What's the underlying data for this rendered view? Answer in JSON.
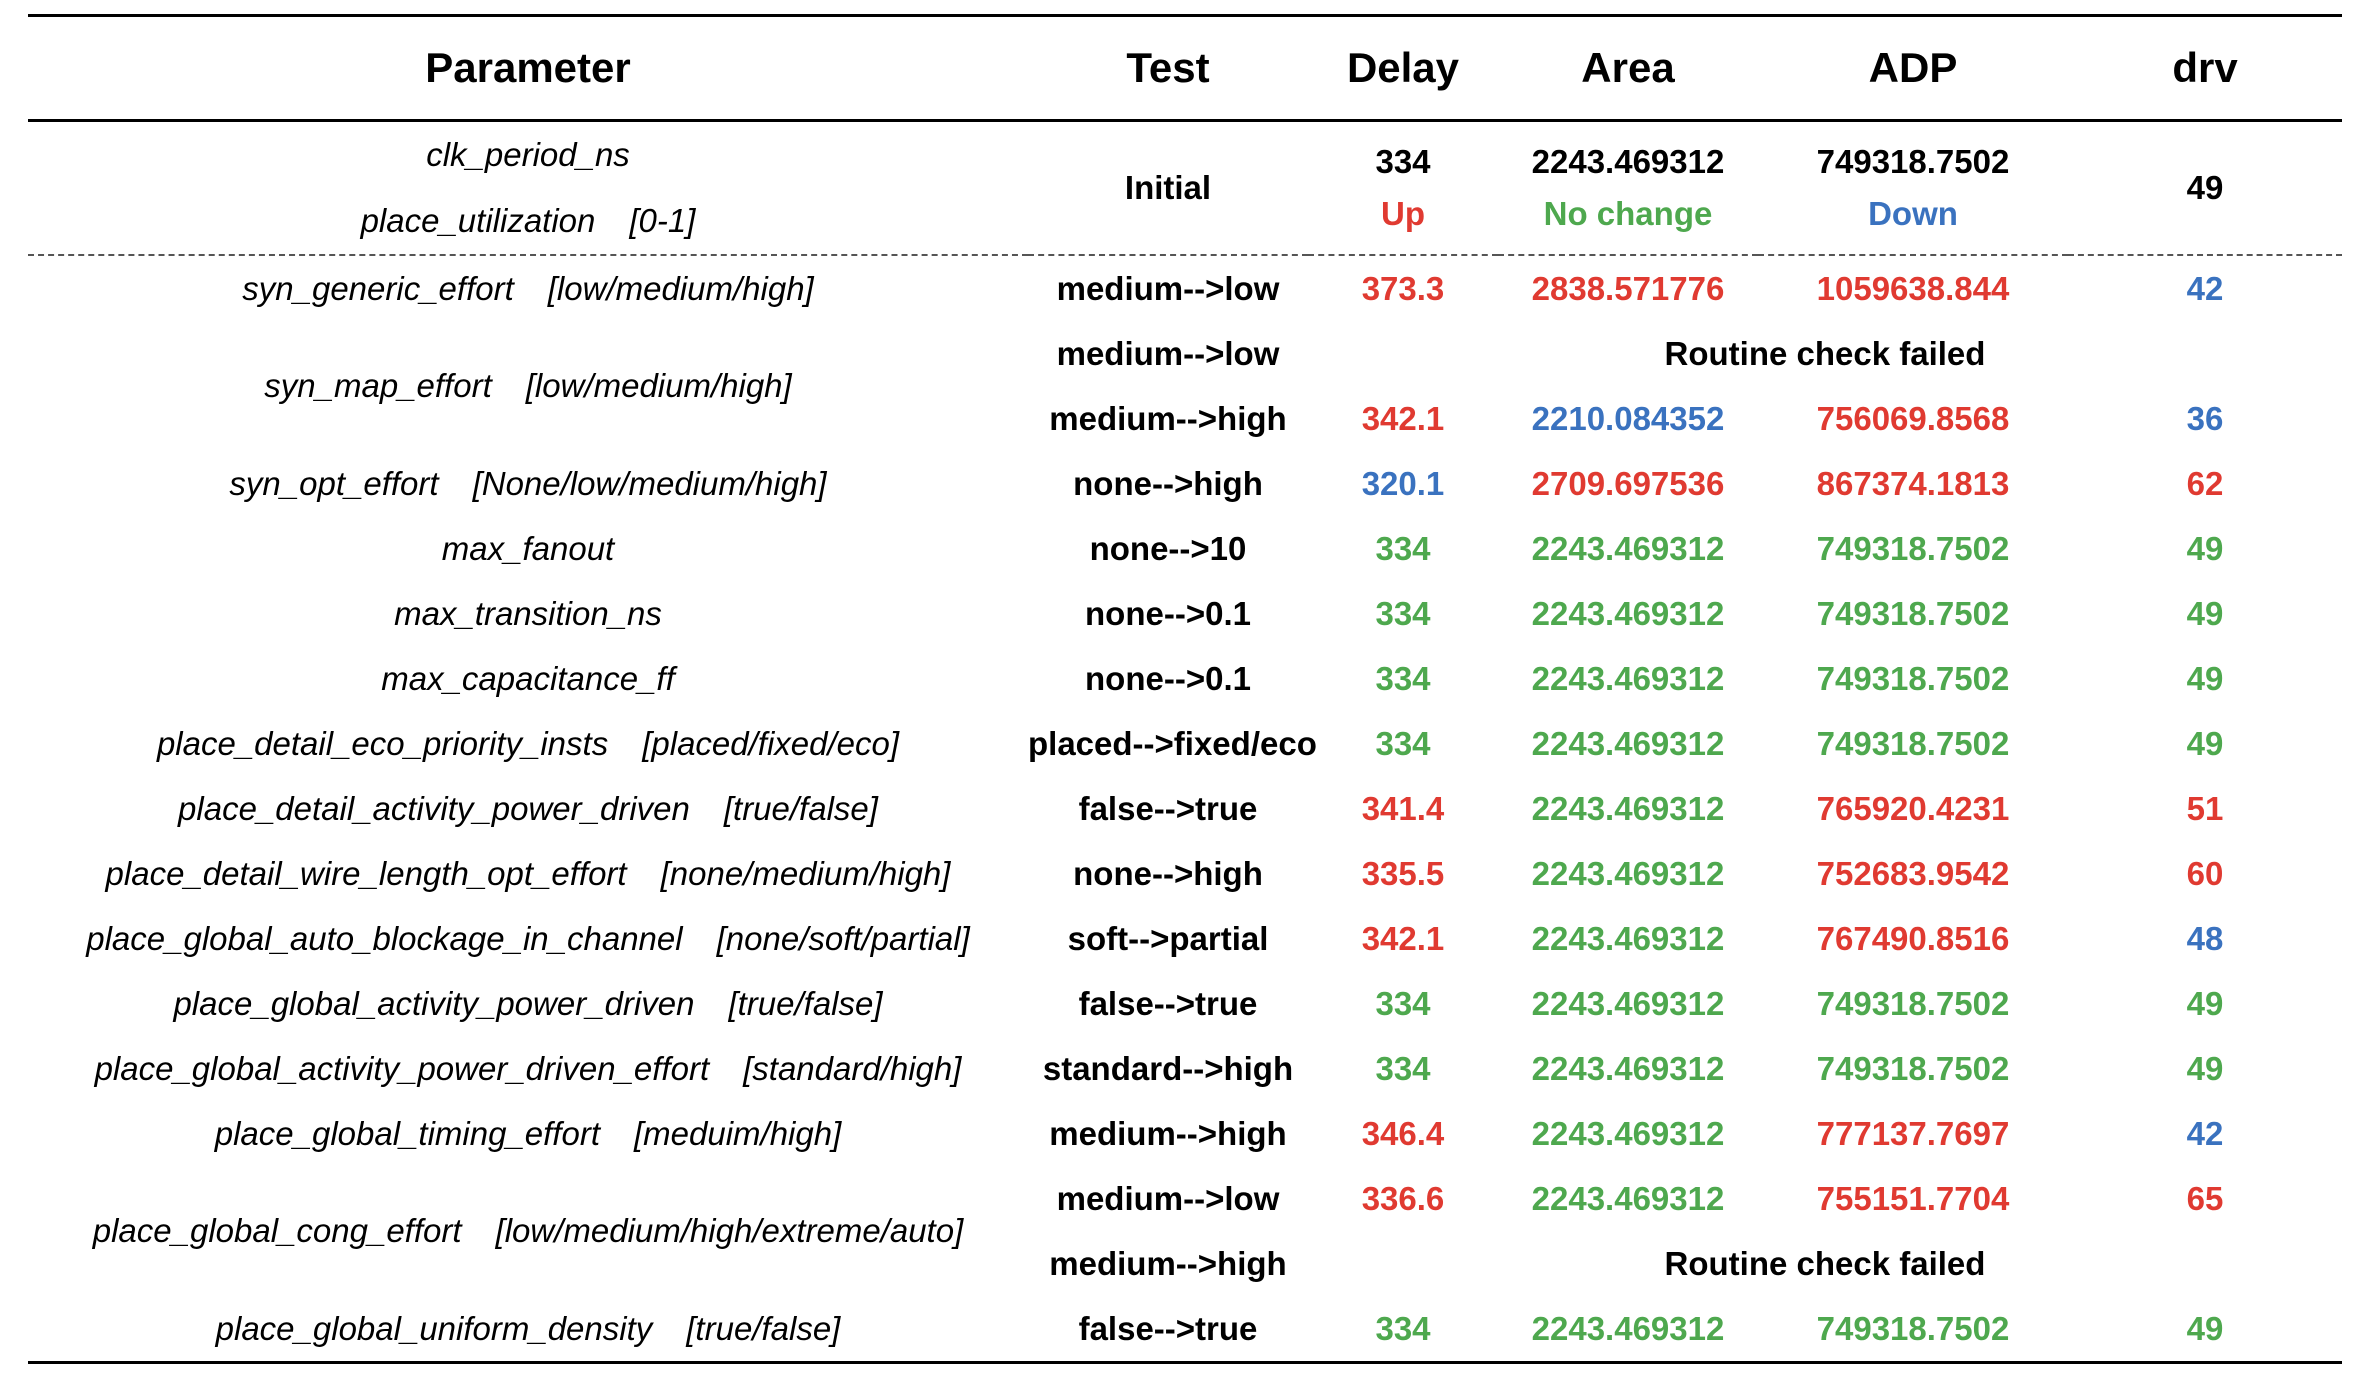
{
  "table": {
    "headers": {
      "parameter": "Parameter",
      "test": "Test",
      "delay": "Delay",
      "area": "Area",
      "adp": "ADP",
      "drv": "drv"
    },
    "initial": {
      "params": [
        {
          "name": "clk_period_ns",
          "options": ""
        },
        {
          "name": "place_utilization",
          "options": "[0-1]"
        }
      ],
      "test": "Initial",
      "delay": "334",
      "area": "2243.469312",
      "adp": "749318.7502",
      "drv": "49",
      "legend": {
        "up": "Up",
        "no_change": "No change",
        "down": "Down",
        "up_color": "#e03a31",
        "no_change_color": "#4ea84e",
        "down_color": "#3a72bf"
      }
    },
    "rows": [
      {
        "param": "syn_generic_effort",
        "options": "[low/medium/high]",
        "tests": [
          {
            "test": "medium-->low",
            "delay": "373.3",
            "delay_c": "up",
            "area": "2838.571776",
            "area_c": "up",
            "adp": "1059638.844",
            "adp_c": "up",
            "drv": "42",
            "drv_c": "down"
          }
        ]
      },
      {
        "param": "syn_map_effort",
        "options": "[low/medium/high]",
        "tests": [
          {
            "test": "medium-->low",
            "failed": "Routine check failed"
          },
          {
            "test": "medium-->high",
            "delay": "342.1",
            "delay_c": "up",
            "area": "2210.084352",
            "area_c": "down",
            "adp": "756069.8568",
            "adp_c": "up",
            "drv": "36",
            "drv_c": "down"
          }
        ]
      },
      {
        "param": "syn_opt_effort",
        "options": "[None/low/medium/high]",
        "tests": [
          {
            "test": "none-->high",
            "delay": "320.1",
            "delay_c": "down",
            "area": "2709.697536",
            "area_c": "up",
            "adp": "867374.1813",
            "adp_c": "up",
            "drv": "62",
            "drv_c": "up"
          }
        ]
      },
      {
        "param": "max_fanout",
        "options": "",
        "tests": [
          {
            "test": "none-->10",
            "delay": "334",
            "delay_c": "same",
            "area": "2243.469312",
            "area_c": "same",
            "adp": "749318.7502",
            "adp_c": "same",
            "drv": "49",
            "drv_c": "same"
          }
        ]
      },
      {
        "param": "max_transition_ns",
        "options": "",
        "tests": [
          {
            "test": "none-->0.1",
            "delay": "334",
            "delay_c": "same",
            "area": "2243.469312",
            "area_c": "same",
            "adp": "749318.7502",
            "adp_c": "same",
            "drv": "49",
            "drv_c": "same"
          }
        ]
      },
      {
        "param": "max_capacitance_ff",
        "options": "",
        "tests": [
          {
            "test": "none-->0.1",
            "delay": "334",
            "delay_c": "same",
            "area": "2243.469312",
            "area_c": "same",
            "adp": "749318.7502",
            "adp_c": "same",
            "drv": "49",
            "drv_c": "same"
          }
        ]
      },
      {
        "param": "place_detail_eco_priority_insts",
        "options": "[placed/fixed/eco]",
        "tests": [
          {
            "test": "placed-->fixed/eco",
            "delay": "334",
            "delay_c": "same",
            "area": "2243.469312",
            "area_c": "same",
            "adp": "749318.7502",
            "adp_c": "same",
            "drv": "49",
            "drv_c": "same"
          }
        ]
      },
      {
        "param": "place_detail_activity_power_driven",
        "options": "[true/false]",
        "tests": [
          {
            "test": "false-->true",
            "delay": "341.4",
            "delay_c": "up",
            "area": "2243.469312",
            "area_c": "same",
            "adp": "765920.4231",
            "adp_c": "up",
            "drv": "51",
            "drv_c": "up"
          }
        ]
      },
      {
        "param": "place_detail_wire_length_opt_effort",
        "options": "[none/medium/high]",
        "tests": [
          {
            "test": "none-->high",
            "delay": "335.5",
            "delay_c": "up",
            "area": "2243.469312",
            "area_c": "same",
            "adp": "752683.9542",
            "adp_c": "up",
            "drv": "60",
            "drv_c": "up"
          }
        ]
      },
      {
        "param": "place_global_auto_blockage_in_channel",
        "options": "[none/soft/partial]",
        "tests": [
          {
            "test": "soft-->partial",
            "delay": "342.1",
            "delay_c": "up",
            "area": "2243.469312",
            "area_c": "same",
            "adp": "767490.8516",
            "adp_c": "up",
            "drv": "48",
            "drv_c": "down"
          }
        ]
      },
      {
        "param": "place_global_activity_power_driven",
        "options": "[true/false]",
        "tests": [
          {
            "test": "false-->true",
            "delay": "334",
            "delay_c": "same",
            "area": "2243.469312",
            "area_c": "same",
            "adp": "749318.7502",
            "adp_c": "same",
            "drv": "49",
            "drv_c": "same"
          }
        ]
      },
      {
        "param": "place_global_activity_power_driven_effort",
        "options": "[standard/high]",
        "tests": [
          {
            "test": "standard-->high",
            "delay": "334",
            "delay_c": "same",
            "area": "2243.469312",
            "area_c": "same",
            "adp": "749318.7502",
            "adp_c": "same",
            "drv": "49",
            "drv_c": "same"
          }
        ]
      },
      {
        "param": "place_global_timing_effort",
        "options": "[meduim/high]",
        "tests": [
          {
            "test": "medium-->high",
            "delay": "346.4",
            "delay_c": "up",
            "area": "2243.469312",
            "area_c": "same",
            "adp": "777137.7697",
            "adp_c": "up",
            "drv": "42",
            "drv_c": "down"
          }
        ]
      },
      {
        "param": "place_global_cong_effort",
        "options": "[low/medium/high/extreme/auto]",
        "tests": [
          {
            "test": "medium-->low",
            "delay": "336.6",
            "delay_c": "up",
            "area": "2243.469312",
            "area_c": "same",
            "adp": "755151.7704",
            "adp_c": "up",
            "drv": "65",
            "drv_c": "up"
          },
          {
            "test": "medium-->high",
            "failed": "Routine check failed"
          }
        ]
      },
      {
        "param": "place_global_uniform_density",
        "options": "[true/false]",
        "tests": [
          {
            "test": "false-->true",
            "delay": "334",
            "delay_c": "same",
            "area": "2243.469312",
            "area_c": "same",
            "adp": "749318.7502",
            "adp_c": "same",
            "drv": "49",
            "drv_c": "same"
          }
        ]
      }
    ]
  }
}
